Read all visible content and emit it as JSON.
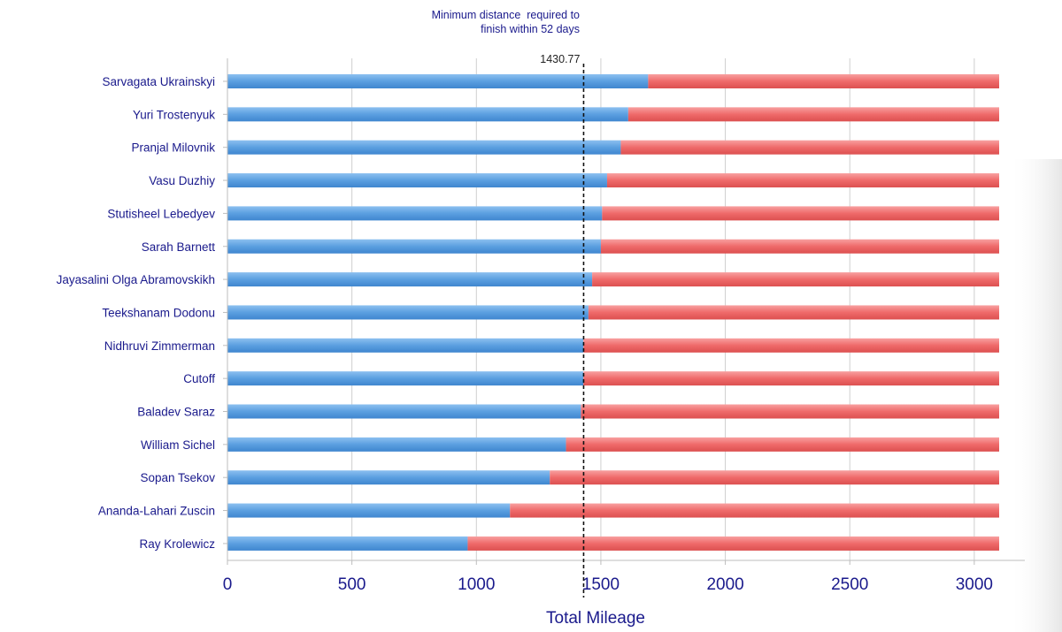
{
  "chart_data": {
    "type": "bar",
    "orientation": "horizontal",
    "stacked": true,
    "categories": [
      "Sarvagata Ukrainskyi",
      "Yuri Trostenyuk",
      "Pranjal Milovnik",
      "Vasu Duzhiy",
      "Stutisheel Lebedyev",
      "Sarah Barnett",
      "Jayasalini Olga Abramovskikh",
      "Teekshanam Dodonu",
      "Nidhruvi Zimmerman",
      "Cutoff",
      "Baladev Saraz",
      "William Sichel",
      "Sopan Tsekov",
      "Ananda-Lahari Zuscin",
      "Ray Krolewicz"
    ],
    "series": [
      {
        "color": "#5b9fe0",
        "values": [
          1690,
          1610,
          1580,
          1525,
          1505,
          1500,
          1465,
          1450,
          1430,
          1430,
          1420,
          1360,
          1295,
          1135,
          965
        ]
      },
      {
        "color": "#ef6a6a",
        "values": [
          1410,
          1490,
          1520,
          1575,
          1595,
          1600,
          1635,
          1650,
          1670,
          1670,
          1680,
          1740,
          1805,
          1965,
          2135
        ]
      }
    ],
    "x_ticks": [
      "0",
      "500",
      "1000",
      "1500",
      "2000",
      "2500",
      "3000"
    ],
    "xlim": [
      0,
      3100
    ],
    "xlabel": "Total Mileage",
    "grid": true,
    "reference_line": {
      "x": 1430.77,
      "value_label": "1430.77",
      "annotation": [
        "Minimum distance  required to",
        "finish within 52 days"
      ]
    }
  }
}
